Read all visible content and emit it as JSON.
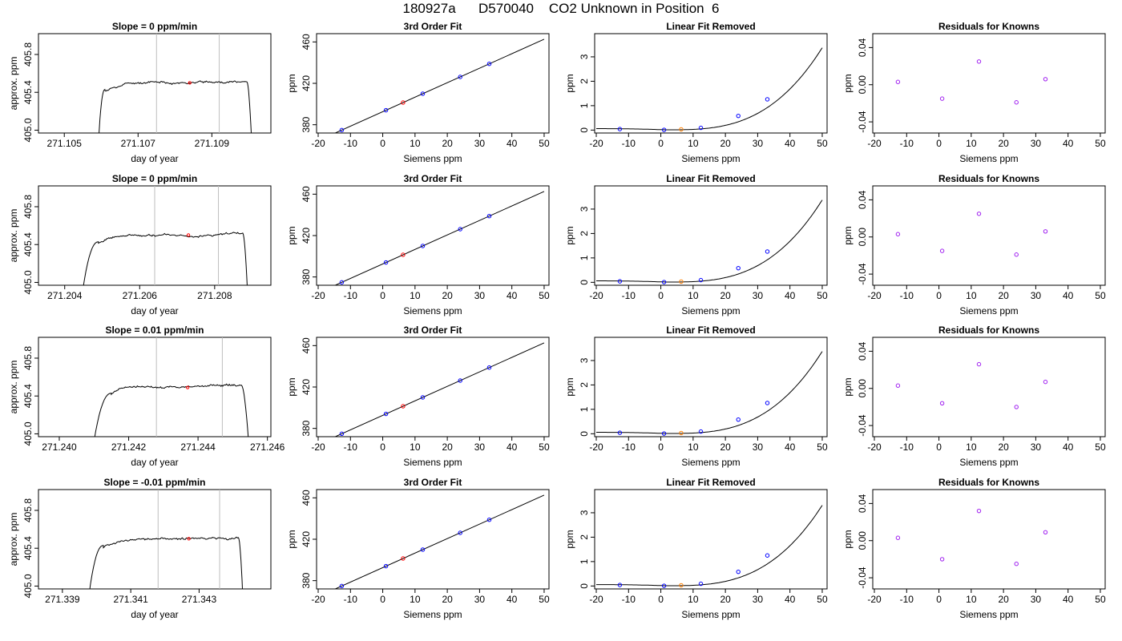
{
  "figure_title": "180927a      D570040    CO2 Unknown in Position  6",
  "colors": {
    "known_point": "#0000ff",
    "unknown_point": "#ff0000",
    "unknown_point_fit": "#ff8000",
    "residual_point": "#a020f0",
    "window_line": "#bebebe",
    "curve": "#000000"
  },
  "chart_data": [
    {
      "type": "line",
      "panel": "timeseries",
      "title": "Slope =  0  ppm/min",
      "xlabel": "day of year",
      "ylabel": "approx. ppm",
      "xlim": [
        271.1043,
        271.1106
      ],
      "ylim": [
        404.97,
        406.02
      ],
      "xticks": [
        271.105,
        271.107,
        271.109
      ],
      "xtick_labels": [
        "271.105",
        "271.107",
        "271.109"
      ],
      "yticks": [
        405.0,
        405.4,
        405.8
      ],
      "ytick_labels": [
        "405.0",
        "405.4",
        "405.8"
      ],
      "window": [
        271.1075,
        271.1092
      ],
      "marker": {
        "x": 271.1084,
        "y": 405.5
      },
      "rise_start": 271.1059,
      "plateau_start": 271.1061,
      "fall_start": 271.10995,
      "fall_end": 271.1101,
      "plateau_mean": 405.49,
      "seed": 11
    },
    {
      "type": "scatter",
      "panel": "fit",
      "title": "3rd Order Fit",
      "xlabel": "Siemens ppm",
      "ylabel": "ppm",
      "xlim": [
        -20.5,
        51.5
      ],
      "ylim": [
        372,
        468
      ],
      "xticks": [
        -20,
        -10,
        0,
        10,
        20,
        30,
        40,
        50
      ],
      "xtick_labels": [
        "-20",
        "-10",
        "0",
        "10",
        "20",
        "30",
        "40",
        "50"
      ],
      "yticks": [
        380,
        420,
        460
      ],
      "ytick_labels": [
        "380",
        "420",
        "460"
      ],
      "curve": {
        "x_from": -18,
        "x_to": 50,
        "c0": 392.6,
        "c1": 1.4
      },
      "knowns": {
        "x": [
          -12.7,
          1.0,
          12.4,
          24.0,
          33.0
        ],
        "y": [
          374.8,
          394.2,
          410.2,
          426.4,
          439.2
        ]
      },
      "unknown": {
        "x": 6.3,
        "y": 401.4
      }
    },
    {
      "type": "scatter",
      "panel": "linear-removed",
      "title": "Linear Fit Removed",
      "xlabel": "Siemens ppm",
      "ylabel": "ppm",
      "xlim": [
        -20.5,
        51.5
      ],
      "ylim": [
        -0.12,
        3.95
      ],
      "xticks": [
        -20,
        -10,
        0,
        10,
        20,
        30,
        40,
        50
      ],
      "xtick_labels": [
        "-20",
        "-10",
        "0",
        "10",
        "20",
        "30",
        "40",
        "50"
      ],
      "yticks": [
        0,
        1,
        2,
        3
      ],
      "ytick_labels": [
        "0",
        "1",
        "2",
        "3"
      ],
      "curve": {
        "x_from": -20,
        "x_to": 50,
        "a": 0.06,
        "b": 0.0002,
        "c": 2.8e-05,
        "scale": 1.0
      },
      "knowns": {
        "x": [
          -12.7,
          1.0,
          12.4,
          24.0,
          33.0
        ],
        "y": [
          0.04,
          0.01,
          0.09,
          0.58,
          1.26
        ]
      },
      "unknown": {
        "x": 6.3,
        "y": 0.03
      }
    },
    {
      "type": "scatter",
      "panel": "residuals",
      "title": "Residuals for Knowns",
      "xlabel": "Siemens ppm",
      "ylabel": "ppm",
      "xlim": [
        -20.5,
        51.5
      ],
      "ylim": [
        -0.052,
        0.055
      ],
      "xticks": [
        -20,
        -10,
        0,
        10,
        20,
        30,
        40,
        50
      ],
      "xtick_labels": [
        "-20",
        "-10",
        "0",
        "10",
        "20",
        "30",
        "40",
        "50"
      ],
      "yticks": [
        -0.04,
        0.0,
        0.04
      ],
      "ytick_labels": [
        "-0.04",
        "0.00",
        "0.04"
      ],
      "points": {
        "x": [
          -12.7,
          1.0,
          12.4,
          24.0,
          33.0
        ],
        "y": [
          0.003,
          -0.015,
          0.025,
          -0.019,
          0.006
        ]
      }
    },
    {
      "type": "line",
      "panel": "timeseries",
      "title": "Slope =  0  ppm/min",
      "xlabel": "day of year",
      "ylabel": "approx. ppm",
      "xlim": [
        271.2033,
        271.2095
      ],
      "ylim": [
        404.97,
        406.02
      ],
      "xticks": [
        271.204,
        271.206,
        271.208
      ],
      "xtick_labels": [
        "271.204",
        "271.206",
        "271.208"
      ],
      "yticks": [
        405.0,
        405.4,
        405.8
      ],
      "ytick_labels": [
        "405.0",
        "405.4",
        "405.8"
      ],
      "window": [
        271.2064,
        271.2081
      ],
      "marker": {
        "x": 271.2073,
        "y": 405.5
      },
      "rise_start": 271.2044,
      "plateau_start": 271.2049,
      "fall_start": 271.20875,
      "fall_end": 271.2089,
      "plateau_mean": 405.49,
      "seed": 23
    },
    {
      "type": "scatter",
      "panel": "fit",
      "title": "3rd Order Fit",
      "xlabel": "Siemens ppm",
      "ylabel": "ppm",
      "xlim": [
        -20.5,
        51.5
      ],
      "ylim": [
        372,
        468
      ],
      "xticks": [
        -20,
        -10,
        0,
        10,
        20,
        30,
        40,
        50
      ],
      "xtick_labels": [
        "-20",
        "-10",
        "0",
        "10",
        "20",
        "30",
        "40",
        "50"
      ],
      "yticks": [
        380,
        420,
        460
      ],
      "ytick_labels": [
        "380",
        "420",
        "460"
      ],
      "curve": {
        "x_from": -18,
        "x_to": 50,
        "c0": 392.6,
        "c1": 1.4
      },
      "knowns": {
        "x": [
          -12.7,
          1.0,
          12.4,
          24.0,
          33.0
        ],
        "y": [
          374.8,
          394.2,
          410.2,
          426.4,
          439.2
        ]
      },
      "unknown": {
        "x": 6.3,
        "y": 401.4
      }
    },
    {
      "type": "scatter",
      "panel": "linear-removed",
      "title": "Linear Fit Removed",
      "xlabel": "Siemens ppm",
      "ylabel": "ppm",
      "xlim": [
        -20.5,
        51.5
      ],
      "ylim": [
        -0.12,
        3.95
      ],
      "xticks": [
        -20,
        -10,
        0,
        10,
        20,
        30,
        40,
        50
      ],
      "xtick_labels": [
        "-20",
        "-10",
        "0",
        "10",
        "20",
        "30",
        "40",
        "50"
      ],
      "yticks": [
        0,
        1,
        2,
        3
      ],
      "ytick_labels": [
        "0",
        "1",
        "2",
        "3"
      ],
      "curve": {
        "x_from": -20,
        "x_to": 50,
        "a": 0.06,
        "b": 0.0002,
        "c": 2.8e-05,
        "scale": 1.0
      },
      "knowns": {
        "x": [
          -12.7,
          1.0,
          12.4,
          24.0,
          33.0
        ],
        "y": [
          0.04,
          0.01,
          0.09,
          0.58,
          1.26
        ]
      },
      "unknown": {
        "x": 6.3,
        "y": 0.03
      }
    },
    {
      "type": "scatter",
      "panel": "residuals",
      "title": "Residuals for Knowns",
      "xlabel": "Siemens ppm",
      "ylabel": "ppm",
      "xlim": [
        -20.5,
        51.5
      ],
      "ylim": [
        -0.052,
        0.055
      ],
      "xticks": [
        -20,
        -10,
        0,
        10,
        20,
        30,
        40,
        50
      ],
      "xtick_labels": [
        "-20",
        "-10",
        "0",
        "10",
        "20",
        "30",
        "40",
        "50"
      ],
      "yticks": [
        -0.04,
        0.0,
        0.04
      ],
      "ytick_labels": [
        "-0.04",
        "0.00",
        "0.04"
      ],
      "points": {
        "x": [
          -12.7,
          1.0,
          12.4,
          24.0,
          33.0
        ],
        "y": [
          0.003,
          -0.015,
          0.025,
          -0.019,
          0.006
        ]
      }
    },
    {
      "type": "line",
      "panel": "timeseries",
      "title": "Slope =  0.01  ppm/min",
      "xlabel": "day of year",
      "ylabel": "approx. ppm",
      "xlim": [
        271.2394,
        271.2461
      ],
      "ylim": [
        404.97,
        406.02
      ],
      "xticks": [
        271.24,
        271.242,
        271.244,
        271.246
      ],
      "xtick_labels": [
        "271.240",
        "271.242",
        "271.244",
        "271.246"
      ],
      "yticks": [
        405.0,
        405.4,
        405.8
      ],
      "ytick_labels": [
        "405.0",
        "405.4",
        "405.8"
      ],
      "window": [
        271.2428,
        271.2447
      ],
      "marker": {
        "x": 271.2437,
        "y": 405.49
      },
      "rise_start": 271.2409,
      "plateau_start": 271.2415,
      "fall_start": 271.24525,
      "fall_end": 271.2455,
      "plateau_mean": 405.49,
      "seed": 37
    },
    {
      "type": "scatter",
      "panel": "fit",
      "title": "3rd Order Fit",
      "xlabel": "Siemens ppm",
      "ylabel": "ppm",
      "xlim": [
        -20.5,
        51.5
      ],
      "ylim": [
        372,
        468
      ],
      "xticks": [
        -20,
        -10,
        0,
        10,
        20,
        30,
        40,
        50
      ],
      "xtick_labels": [
        "-20",
        "-10",
        "0",
        "10",
        "20",
        "30",
        "40",
        "50"
      ],
      "yticks": [
        380,
        420,
        460
      ],
      "ytick_labels": [
        "380",
        "420",
        "460"
      ],
      "curve": {
        "x_from": -18,
        "x_to": 50,
        "c0": 392.6,
        "c1": 1.4
      },
      "knowns": {
        "x": [
          -12.7,
          1.0,
          12.4,
          24.0,
          33.0
        ],
        "y": [
          374.8,
          394.2,
          410.2,
          426.4,
          439.2
        ]
      },
      "unknown": {
        "x": 6.3,
        "y": 401.4
      }
    },
    {
      "type": "scatter",
      "panel": "linear-removed",
      "title": "Linear Fit Removed",
      "xlabel": "Siemens ppm",
      "ylabel": "ppm",
      "xlim": [
        -20.5,
        51.5
      ],
      "ylim": [
        -0.12,
        3.95
      ],
      "xticks": [
        -20,
        -10,
        0,
        10,
        20,
        30,
        40,
        50
      ],
      "xtick_labels": [
        "-20",
        "-10",
        "0",
        "10",
        "20",
        "30",
        "40",
        "50"
      ],
      "yticks": [
        0,
        1,
        2,
        3
      ],
      "ytick_labels": [
        "0",
        "1",
        "2",
        "3"
      ],
      "curve": {
        "x_from": -20,
        "x_to": 50,
        "a": 0.06,
        "b": 0.0002,
        "c": 2.8e-05,
        "scale": 1.0
      },
      "knowns": {
        "x": [
          -12.7,
          1.0,
          12.4,
          24.0,
          33.0
        ],
        "y": [
          0.04,
          0.01,
          0.09,
          0.58,
          1.26
        ]
      },
      "unknown": {
        "x": 6.3,
        "y": 0.03
      }
    },
    {
      "type": "scatter",
      "panel": "residuals",
      "title": "Residuals for Knowns",
      "xlabel": "Siemens ppm",
      "ylabel": "ppm",
      "xlim": [
        -20.5,
        51.5
      ],
      "ylim": [
        -0.052,
        0.055
      ],
      "xticks": [
        -20,
        -10,
        0,
        10,
        20,
        30,
        40,
        50
      ],
      "xtick_labels": [
        "-20",
        "-10",
        "0",
        "10",
        "20",
        "30",
        "40",
        "50"
      ],
      "yticks": [
        -0.04,
        0.0,
        0.04
      ],
      "ytick_labels": [
        "-0.04",
        "0.00",
        "0.04"
      ],
      "points": {
        "x": [
          -12.7,
          1.0,
          12.4,
          24.0,
          33.0
        ],
        "y": [
          0.003,
          -0.016,
          0.026,
          -0.02,
          0.007
        ]
      }
    },
    {
      "type": "line",
      "panel": "timeseries",
      "title": "Slope =  -0.01  ppm/min",
      "xlabel": "day of year",
      "ylabel": "approx. ppm",
      "xlim": [
        271.3383,
        271.3451
      ],
      "ylim": [
        404.97,
        406.02
      ],
      "xticks": [
        271.339,
        271.341,
        271.343
      ],
      "xtick_labels": [
        "271.339",
        "271.341",
        "271.343"
      ],
      "yticks": [
        405.0,
        405.4,
        405.8
      ],
      "ytick_labels": [
        "405.0",
        "405.4",
        "405.8"
      ],
      "window": [
        271.3418,
        271.3436
      ],
      "marker": {
        "x": 271.3427,
        "y": 405.5
      },
      "rise_start": 271.3397,
      "plateau_start": 271.3402,
      "fall_start": 271.34415,
      "fall_end": 271.3443,
      "plateau_mean": 405.49,
      "seed": 53
    },
    {
      "type": "scatter",
      "panel": "fit",
      "title": "3rd Order Fit",
      "xlabel": "Siemens ppm",
      "ylabel": "ppm",
      "xlim": [
        -20.5,
        51.5
      ],
      "ylim": [
        372,
        468
      ],
      "xticks": [
        -20,
        -10,
        0,
        10,
        20,
        30,
        40,
        50
      ],
      "xtick_labels": [
        "-20",
        "-10",
        "0",
        "10",
        "20",
        "30",
        "40",
        "50"
      ],
      "yticks": [
        380,
        420,
        460
      ],
      "ytick_labels": [
        "380",
        "420",
        "460"
      ],
      "curve": {
        "x_from": -18,
        "x_to": 50,
        "c0": 392.6,
        "c1": 1.4
      },
      "knowns": {
        "x": [
          -12.7,
          1.0,
          12.4,
          24.0,
          33.0
        ],
        "y": [
          374.8,
          394.2,
          410.2,
          426.4,
          439.2
        ]
      },
      "unknown": {
        "x": 6.3,
        "y": 401.4
      }
    },
    {
      "type": "scatter",
      "panel": "linear-removed",
      "title": "Linear Fit Removed",
      "xlabel": "Siemens ppm",
      "ylabel": "ppm",
      "xlim": [
        -20.5,
        51.5
      ],
      "ylim": [
        -0.12,
        3.95
      ],
      "xticks": [
        -20,
        -10,
        0,
        10,
        20,
        30,
        40,
        50
      ],
      "xtick_labels": [
        "-20",
        "-10",
        "0",
        "10",
        "20",
        "30",
        "40",
        "50"
      ],
      "yticks": [
        0,
        1,
        2,
        3
      ],
      "ytick_labels": [
        "0",
        "1",
        "2",
        "3"
      ],
      "curve": {
        "x_from": -20,
        "x_to": 50,
        "a": 0.06,
        "b": 0.0002,
        "c": 2.8e-05,
        "scale": 0.98
      },
      "knowns": {
        "x": [
          -12.7,
          1.0,
          12.4,
          24.0,
          33.0
        ],
        "y": [
          0.04,
          0.01,
          0.09,
          0.58,
          1.25
        ]
      },
      "unknown": {
        "x": 6.3,
        "y": 0.03
      }
    },
    {
      "type": "scatter",
      "panel": "residuals",
      "title": "Residuals for Knowns",
      "xlabel": "Siemens ppm",
      "ylabel": "ppm",
      "xlim": [
        -20.5,
        51.5
      ],
      "ylim": [
        -0.052,
        0.055
      ],
      "xticks": [
        -20,
        -10,
        0,
        10,
        20,
        30,
        40,
        50
      ],
      "xtick_labels": [
        "-20",
        "-10",
        "0",
        "10",
        "20",
        "30",
        "40",
        "50"
      ],
      "yticks": [
        -0.04,
        0.0,
        0.04
      ],
      "ytick_labels": [
        "-0.04",
        "0.00",
        "0.04"
      ],
      "points": {
        "x": [
          -12.7,
          1.0,
          12.4,
          24.0,
          33.0
        ],
        "y": [
          0.003,
          -0.02,
          0.032,
          -0.025,
          0.009
        ]
      }
    }
  ]
}
